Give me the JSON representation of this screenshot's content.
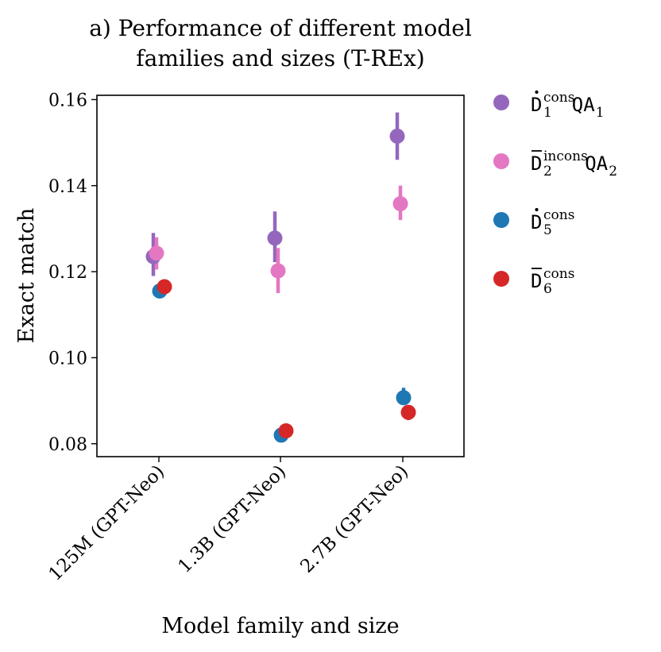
{
  "chart_data": {
    "type": "scatter",
    "title_lines": [
      "a) Performance of different model",
      "families and sizes (T-REx)"
    ],
    "xlabel": "Model family and size",
    "ylabel": "Exact match",
    "categories": [
      "125M (GPT-Neo)",
      "1.3B (GPT-Neo)",
      "2.7B (GPT-Neo)"
    ],
    "ylim": [
      0.077,
      0.161
    ],
    "yticks": [
      0.08,
      0.1,
      0.12,
      0.14,
      0.16
    ],
    "ytick_labels": [
      "0.08",
      "0.10",
      "0.12",
      "0.14",
      "0.16"
    ],
    "grid": false,
    "legend_position": "outside-right",
    "series": [
      {
        "name": "D1 cons QA1",
        "legend": {
          "base": "D",
          "accent": "dot",
          "sup": "cons",
          "sub": "1",
          "tail": "QA",
          "tail_sub": "1"
        },
        "color": "#9467bd",
        "values": [
          0.1235,
          0.1278,
          0.1515
        ],
        "err_low": [
          0.119,
          0.1222,
          0.146
        ],
        "err_high": [
          0.129,
          0.134,
          0.157
        ]
      },
      {
        "name": "D2 incons QA2",
        "legend": {
          "base": "D",
          "accent": "bar",
          "sup": "incons",
          "sub": "2",
          "tail": "QA",
          "tail_sub": "2"
        },
        "color": "#e377c2",
        "values": [
          0.1243,
          0.1202,
          0.1358
        ],
        "err_low": [
          0.1205,
          0.115,
          0.132
        ],
        "err_high": [
          0.128,
          0.1255,
          0.14
        ]
      },
      {
        "name": "D5 cons",
        "legend": {
          "base": "D",
          "accent": "dot",
          "sup": "cons",
          "sub": "5",
          "tail": "",
          "tail_sub": ""
        },
        "color": "#1f77b4",
        "values": [
          0.1155,
          0.082,
          0.0907
        ],
        "err_low": [
          0.114,
          0.081,
          0.0895
        ],
        "err_high": [
          0.117,
          0.083,
          0.093
        ]
      },
      {
        "name": "D6 cons",
        "legend": {
          "base": "D",
          "accent": "bar",
          "sup": "cons",
          "sub": "6",
          "tail": "",
          "tail_sub": ""
        },
        "color": "#d62728",
        "values": [
          0.1165,
          0.083,
          0.0873
        ],
        "err_low": [
          0.1155,
          0.082,
          0.0855
        ],
        "err_high": [
          0.1175,
          0.0842,
          0.0885
        ]
      }
    ]
  }
}
